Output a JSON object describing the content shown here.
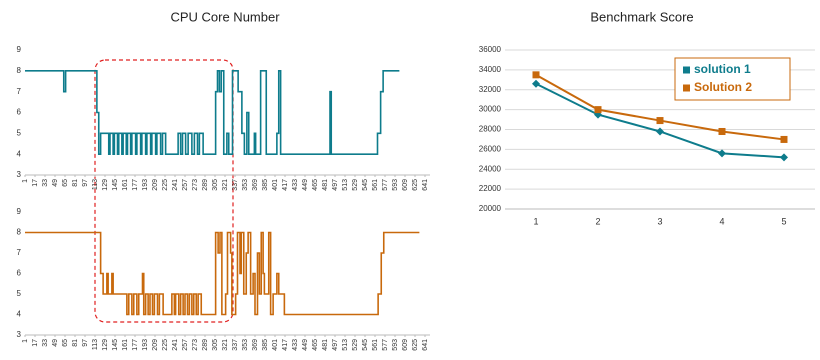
{
  "chart_data": [
    {
      "type": "line",
      "step": "post",
      "title": "CPU Core Number",
      "color": "#0e7c8c",
      "x": [
        1,
        63,
        66,
        116,
        119,
        122,
        135,
        137,
        142,
        144,
        149,
        151,
        156,
        158,
        163,
        165,
        170,
        172,
        178,
        180,
        186,
        188,
        194,
        196,
        202,
        204,
        210,
        212,
        218,
        221,
        226,
        246,
        250,
        253,
        258,
        262,
        268,
        272,
        277,
        280,
        286,
        306,
        309,
        312,
        315,
        319,
        324,
        327,
        333,
        342,
        348,
        352,
        356,
        359,
        368,
        370,
        378,
        387,
        404,
        407,
        410,
        489,
        491,
        565,
        570,
        574,
        600
      ],
      "values": [
        8,
        7,
        8,
        6,
        4,
        5,
        4,
        5,
        4,
        5,
        4,
        5,
        4,
        5,
        4,
        5,
        4,
        5,
        4,
        5,
        4,
        5,
        4,
        5,
        4,
        5,
        4,
        5,
        4,
        5,
        4,
        5,
        4,
        5,
        4,
        5,
        4,
        5,
        4,
        5,
        4,
        7,
        8,
        7,
        8,
        4,
        5,
        4,
        8,
        7,
        5,
        4,
        6,
        4,
        5,
        4,
        8,
        4,
        5,
        8,
        4,
        7,
        4,
        5,
        7,
        8,
        8
      ],
      "xlim": [
        1,
        649
      ],
      "xticks": [
        1,
        17,
        33,
        49,
        65,
        81,
        97,
        113,
        129,
        145,
        161,
        177,
        193,
        209,
        225,
        241,
        257,
        273,
        289,
        305,
        321,
        337,
        353,
        369,
        385,
        401,
        417,
        433,
        449,
        465,
        481,
        497,
        513,
        529,
        545,
        561,
        577,
        593,
        609,
        625,
        641
      ],
      "ylim": [
        3,
        9
      ],
      "yticks": [
        3,
        4,
        5,
        6,
        7,
        8,
        9
      ]
    },
    {
      "type": "line",
      "step": "post",
      "color": "#c8690c",
      "x": [
        1,
        122,
        126,
        132,
        134,
        140,
        142,
        164,
        167,
        172,
        175,
        180,
        183,
        189,
        191,
        194,
        198,
        201,
        205,
        208,
        213,
        216,
        222,
        236,
        240,
        242,
        247,
        250,
        254,
        257,
        261,
        264,
        268,
        271,
        275,
        278,
        283,
        306,
        310,
        313,
        316,
        322,
        325,
        330,
        332,
        338,
        341,
        345,
        347,
        351,
        355,
        358,
        362,
        366,
        369,
        373,
        376,
        379,
        382,
        384,
        391,
        394,
        398,
        404,
        407,
        416,
        566,
        571,
        575,
        632
      ],
      "values": [
        8,
        6,
        5,
        6,
        5,
        6,
        5,
        4,
        5,
        4,
        5,
        4,
        5,
        6,
        4,
        5,
        4,
        5,
        4,
        5,
        4,
        5,
        4,
        5,
        4,
        5,
        4,
        5,
        4,
        5,
        4,
        5,
        4,
        5,
        4,
        5,
        4,
        8,
        7,
        8,
        4,
        5,
        8,
        7,
        4,
        5,
        8,
        6,
        8,
        5,
        7,
        8,
        5,
        6,
        4,
        7,
        5,
        8,
        6,
        5,
        8,
        4,
        5,
        6,
        5,
        4,
        5,
        7,
        8,
        8
      ],
      "xlim": [
        1,
        649
      ],
      "xticks": [
        1,
        17,
        33,
        49,
        65,
        81,
        97,
        113,
        129,
        145,
        161,
        177,
        193,
        209,
        225,
        241,
        257,
        273,
        289,
        305,
        321,
        337,
        353,
        369,
        385,
        401,
        417,
        433,
        449,
        465,
        481,
        497,
        513,
        529,
        545,
        561,
        577,
        593,
        609,
        625,
        641
      ],
      "ylim": [
        3,
        9
      ],
      "yticks": [
        3,
        4,
        5,
        6,
        7,
        8,
        9
      ]
    },
    {
      "type": "line",
      "title": "Benchmark Score",
      "categories": [
        "1",
        "2",
        "3",
        "4",
        "5"
      ],
      "series": [
        {
          "name": "solution 1",
          "color": "#0e7c8c",
          "marker": "diamond",
          "values": [
            32600,
            29500,
            27800,
            25600,
            25200
          ]
        },
        {
          "name": "Solution 2",
          "color": "#c8690c",
          "marker": "square",
          "values": [
            33500,
            30000,
            28900,
            27800,
            27000
          ]
        }
      ],
      "ylim": [
        20000,
        36000
      ],
      "yticks": [
        20000,
        22000,
        24000,
        26000,
        28000,
        30000,
        32000,
        34000,
        36000
      ],
      "grid": true,
      "legend": "upper right"
    }
  ]
}
